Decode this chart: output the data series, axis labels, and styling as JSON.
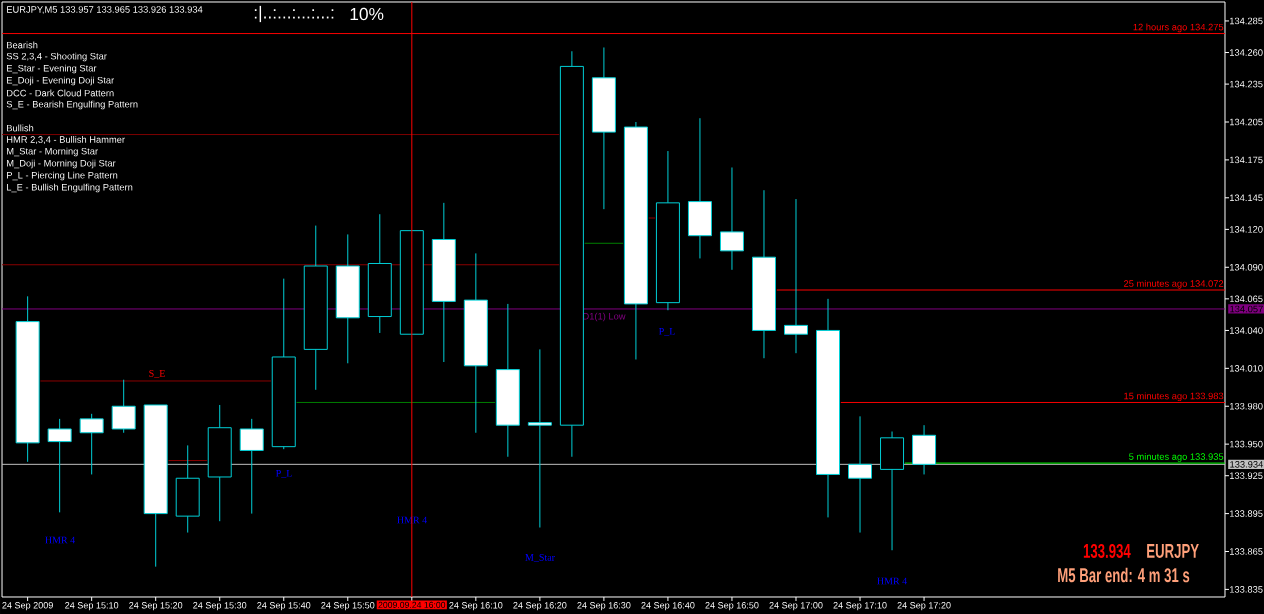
{
  "chart_data": {
    "type": "candlestick",
    "title": "EURJPY,M5 133.957 133.965 133.926 133.934",
    "x": [
      "2009-09-24T15:00",
      "2009-09-24T15:05",
      "2009-09-24T15:10",
      "2009-09-24T15:15",
      "2009-09-24T15:20",
      "2009-09-24T15:25",
      "2009-09-24T15:30",
      "2009-09-24T15:35",
      "2009-09-24T15:40",
      "2009-09-24T15:45",
      "2009-09-24T15:50",
      "2009-09-24T15:55",
      "2009-09-24T16:00",
      "2009-09-24T16:05",
      "2009-09-24T16:10",
      "2009-09-24T16:15",
      "2009-09-24T16:20",
      "2009-09-24T16:25",
      "2009-09-24T16:30",
      "2009-09-24T16:35",
      "2009-09-24T16:40",
      "2009-09-24T16:45",
      "2009-09-24T16:50",
      "2009-09-24T16:55",
      "2009-09-24T17:00",
      "2009-09-24T17:05",
      "2009-09-24T17:10",
      "2009-09-24T17:15",
      "2009-09-24T17:20"
    ],
    "ohlc": [
      [
        134.047,
        134.067,
        133.936,
        133.951
      ],
      [
        133.962,
        133.97,
        133.896,
        133.952
      ],
      [
        133.97,
        133.974,
        133.926,
        133.959
      ],
      [
        133.98,
        134.001,
        133.959,
        133.962
      ],
      [
        133.981,
        133.981,
        133.853,
        133.895
      ],
      [
        133.893,
        133.949,
        133.88,
        133.923
      ],
      [
        133.924,
        133.981,
        133.889,
        133.963
      ],
      [
        133.962,
        133.97,
        133.895,
        133.945
      ],
      [
        133.948,
        134.081,
        133.946,
        134.019
      ],
      [
        134.025,
        134.123,
        133.993,
        134.091
      ],
      [
        134.091,
        134.116,
        134.014,
        134.05
      ],
      [
        134.051,
        134.132,
        134.038,
        134.093
      ],
      [
        134.037,
        134.119,
        134.037,
        134.119
      ],
      [
        134.112,
        134.141,
        134.015,
        134.063
      ],
      [
        134.064,
        134.101,
        133.959,
        134.012
      ],
      [
        134.009,
        134.061,
        133.94,
        133.965
      ],
      [
        133.967,
        134.025,
        133.884,
        133.965
      ],
      [
        133.965,
        134.261,
        133.94,
        134.249
      ],
      [
        134.24,
        134.264,
        134.136,
        134.197
      ],
      [
        134.201,
        134.205,
        134.017,
        134.061
      ],
      [
        134.062,
        134.182,
        134.056,
        134.141
      ],
      [
        134.142,
        134.208,
        134.097,
        134.115
      ],
      [
        134.118,
        134.169,
        134.088,
        134.103
      ],
      [
        134.098,
        134.151,
        134.018,
        134.04
      ],
      [
        134.044,
        134.144,
        134.022,
        134.037
      ],
      [
        134.04,
        134.065,
        133.892,
        133.926
      ],
      [
        133.934,
        133.972,
        133.88,
        133.923
      ],
      [
        133.93,
        133.96,
        133.866,
        133.955
      ],
      [
        133.957,
        133.965,
        133.926,
        133.934
      ]
    ],
    "color": "#00cfd6",
    "colors": [
      "#ffffff",
      "#ffffff",
      "#ffffff",
      "#ffffff",
      "#ffffff",
      "#000000",
      "#000000",
      "#ffffff",
      "#000000",
      "#000000",
      "#ffffff",
      "#000000",
      "#000000",
      "#ffffff",
      "#ffffff",
      "#ffffff",
      "#ffffff",
      "#000000",
      "#ffffff",
      "#ffffff",
      "#000000",
      "#ffffff",
      "#ffffff",
      "#ffffff",
      "#ffffff",
      "#ffffff",
      "#ffffff",
      "#000000",
      "#ffffff"
    ],
    "series": [
      {
        "type": "line",
        "color": "#8b0000",
        "x": [
          "2009-09-24T14:56",
          "2009-09-24T16:23"
        ],
        "values": [
          134.195,
          134.195
        ]
      },
      {
        "type": "line",
        "color": "#8b0000",
        "x": [
          "2009-09-24T14:56",
          "2009-09-24T16:23"
        ],
        "values": [
          134.092,
          134.092
        ]
      },
      {
        "type": "line",
        "color": "#8b0000",
        "x": [
          "2009-09-24T15:02",
          "2009-09-24T15:38"
        ],
        "values": [
          134.0,
          134.0
        ]
      },
      {
        "type": "line",
        "color": "#8b0000",
        "x": [
          "2009-09-24T15:22",
          "2009-09-24T15:28"
        ],
        "values": [
          133.937,
          133.937
        ]
      },
      {
        "type": "line",
        "color": "#008000",
        "x": [
          "2009-09-24T15:42",
          "2009-09-24T16:13"
        ],
        "values": [
          133.983,
          133.983
        ]
      },
      {
        "type": "line",
        "color": "#008000",
        "x": [
          "2009-09-24T16:27",
          "2009-09-24T16:33"
        ],
        "values": [
          134.109,
          134.109
        ]
      },
      {
        "type": "line",
        "color": "#8b0000",
        "x": [
          "2009-09-24T16:37",
          "2009-09-24T16:38"
        ],
        "values": [
          134.129,
          134.129
        ]
      },
      {
        "type": "line",
        "name": "12 hours ago 134.275",
        "color": "#ff0000",
        "x": [
          "2009-09-24T14:56",
          "2009-09-24T18:07"
        ],
        "values": [
          134.275,
          134.275
        ]
      },
      {
        "type": "line",
        "name": "25 minutes ago 134.072",
        "color": "#ff0000",
        "x": [
          "2009-09-24T16:57",
          "2009-09-24T18:07"
        ],
        "values": [
          134.072,
          134.072
        ]
      },
      {
        "type": "line",
        "name": "15 minutes ago 133.983",
        "color": "#ff0000",
        "x": [
          "2009-09-24T17:07",
          "2009-09-24T18:07"
        ],
        "values": [
          133.983,
          133.983
        ]
      },
      {
        "type": "line",
        "name": "5 minutes ago 133.935",
        "color": "#00ff00",
        "x": [
          "2009-09-24T17:17",
          "2009-09-24T18:07"
        ],
        "values": [
          133.935,
          133.935
        ]
      }
    ],
    "xlim": [
      "2009-09-24T14:56",
      "2009-09-24T18:07"
    ],
    "xticks": [
      {
        "value": "2009-09-24T15:00",
        "label": "24 Sep 2009"
      },
      {
        "value": "2009-09-24T15:10",
        "label": "24 Sep 15:10"
      },
      {
        "value": "2009-09-24T15:20",
        "label": "24 Sep 15:20"
      },
      {
        "value": "2009-09-24T15:30",
        "label": "24 Sep 15:30"
      },
      {
        "value": "2009-09-24T15:40",
        "label": "24 Sep 15:40"
      },
      {
        "value": "2009-09-24T15:50",
        "label": "24 Sep 15:50"
      },
      {
        "value": "2009-09-24T16:00",
        "label": null
      },
      {
        "value": "2009-09-24T16:10",
        "label": "24 Sep 16:10"
      },
      {
        "value": "2009-09-24T16:20",
        "label": "24 Sep 16:20"
      },
      {
        "value": "2009-09-24T16:30",
        "label": "24 Sep 16:30"
      },
      {
        "value": "2009-09-24T16:40",
        "label": "24 Sep 16:40"
      },
      {
        "value": "2009-09-24T16:50",
        "label": "24 Sep 16:50"
      },
      {
        "value": "2009-09-24T17:00",
        "label": "24 Sep 17:00"
      },
      {
        "value": "2009-09-24T17:10",
        "label": "24 Sep 17:10"
      },
      {
        "value": "2009-09-24T17:20",
        "label": "24 Sep 17:20"
      }
    ],
    "ylim": [
      133.829,
      134.3
    ],
    "yticks": [
      134.285,
      {
        "value": 134.26,
        "label": "134.260"
      },
      134.235,
      134.205,
      134.175,
      134.145,
      {
        "value": 134.12,
        "label": "134.120"
      },
      {
        "value": 134.09,
        "label": "134.090"
      },
      134.065,
      {
        "value": 134.04,
        "label": "134.040"
      },
      {
        "value": 134.01,
        "label": "134.010"
      },
      {
        "value": 133.98,
        "label": "133.980"
      },
      {
        "value": 133.95,
        "label": "133.950"
      },
      133.925,
      133.895,
      133.865,
      133.835
    ],
    "ref_lines": [
      {
        "axis": "x",
        "value": "2009-09-24T16:00",
        "label": "2009.09.24 16:00",
        "color": "#ff0000"
      },
      {
        "axis": "y",
        "value": 134.057,
        "label": "134.057",
        "color": "#800080"
      },
      {
        "axis": "y",
        "value": 133.934,
        "label": "133.934",
        "color": "#c0c0c0"
      }
    ],
    "annotations": [
      ":|..:...:...:...:",
      "10%",
      "Bearish",
      "SS 2,3,4 - Shooting Star",
      "E_Star - Evening Star",
      "E_Doji - Evening Doji Star",
      "DCC - Dark Cloud Pattern",
      "S_E - Bearish Engulfing Pattern",
      "Bullish",
      "HMR 2,3,4 - Bullish Hammer",
      "M_Star - Morning Star",
      "M_Doji - Morning Doji Star",
      "P_L - Piercing Line Pattern",
      "L_E - Bullish Engulfing Pattern",
      "HMR 4",
      "S_E",
      "P_L",
      "HMR 4",
      "M_Star",
      "D1(1) Low",
      "P_L",
      "HMR 4",
      "133.934",
      "EURJPY",
      "M5 Bar end: 4 m 31 s"
    ]
  }
}
